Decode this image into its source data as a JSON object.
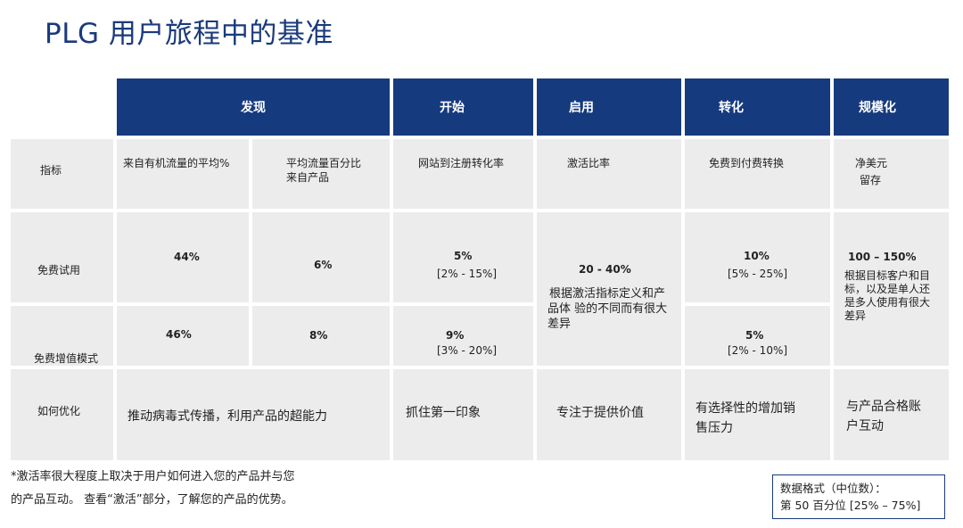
{
  "title": "PLG 用户旅程中的基准",
  "headers": {
    "discover": "发现",
    "start": "开始",
    "activate": "启用",
    "convert": "转化",
    "scale": "规模化"
  },
  "rows": {
    "metric": {
      "label": "指标",
      "organic_traffic": "来自有机流量的平均%",
      "product_traffic_line1": "平均流量百分比",
      "product_traffic_line2": "来自产品",
      "signup_conversion": "网站到注册转化率",
      "activation_rate": "激活比率",
      "free_to_paid": "免费到付费转换",
      "ndr_line1": "净美元",
      "ndr_line2": "留存"
    },
    "free_trial": {
      "label": "免费试用",
      "organic": "44%",
      "product": "6%",
      "signup_value": "5%",
      "signup_range": "[2% - 15%]",
      "convert_value": "10%",
      "convert_range": "[5% - 25%]"
    },
    "freemium": {
      "label": "免费增值模式",
      "organic": "46%",
      "product": "8%",
      "signup_value": "9%",
      "signup_range": "[3% - 20%]",
      "convert_value": "5%",
      "convert_range": "[2% - 10%]"
    },
    "activation_merged": {
      "value": "20 - 40%",
      "note_line1": "根据激活指标定义和产",
      "note_line2": "品体 验的不同而有很大",
      "note_line3": "差异"
    },
    "ndr_merged": {
      "value": "100 – 150%",
      "note_line1": "根据目标客户和目",
      "note_line2": "标，以及是单人还",
      "note_line3": "是多人使用有很大",
      "note_line4": "差异"
    },
    "optimize": {
      "label": "如何优化",
      "discover": "推动病毒式传播，利用产品的超能力",
      "start": "抓住第一印象",
      "activate": "专注于提供价值",
      "convert_line1": "有选择性的增加销",
      "convert_line2": "售压力",
      "scale_line1": "与产品合格账",
      "scale_line2": "户互动"
    }
  },
  "footnote": {
    "line1": "*激活率很大程度上取决于用户如何进入您的产品并与您",
    "line2": "的产品互动。 查看“激活”部分，了解您的产品的优势。"
  },
  "legend": {
    "line1": "数据格式（中位数）：",
    "line2": "第 50 百分位 [25% – 75%]"
  },
  "colors": {
    "header_bg": "#163a7e",
    "cell_bg": "#ececec",
    "title": "#1a3a7c"
  }
}
